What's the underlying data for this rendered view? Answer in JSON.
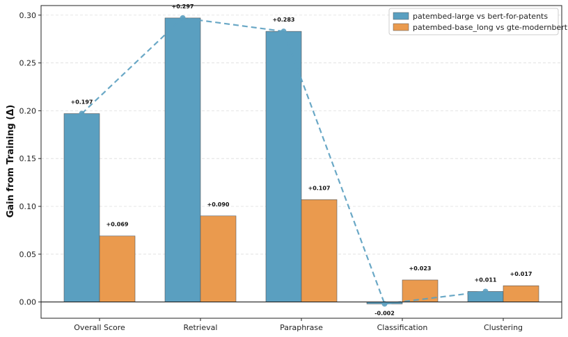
{
  "chart_data": {
    "type": "bar",
    "title": "",
    "xlabel": "",
    "ylabel": "Gain from Training (Δ)",
    "ylim": [
      -0.017,
      0.31
    ],
    "yticks": [
      0.0,
      0.05,
      0.1,
      0.15,
      0.2,
      0.25,
      0.3
    ],
    "ytick_labels": [
      "0.00",
      "0.05",
      "0.10",
      "0.15",
      "0.20",
      "0.25",
      "0.30"
    ],
    "grid": true,
    "legend_position": "top-right",
    "categories": [
      "Overall Score",
      "Retrieval",
      "Paraphrase",
      "Classification",
      "Clustering"
    ],
    "series": [
      {
        "name": "patembed-large vs bert-for-patents",
        "color": "#5a9fc0",
        "values": [
          0.197,
          0.297,
          0.283,
          -0.002,
          0.011
        ],
        "labels": [
          "+0.197",
          "+0.297",
          "+0.283",
          "-0.002",
          "+0.011"
        ],
        "trend_line": true
      },
      {
        "name": "patembed-base_long vs gte-modernbert",
        "color": "#ea9a4e",
        "values": [
          0.069,
          0.09,
          0.107,
          0.023,
          0.017
        ],
        "labels": [
          "+0.069",
          "+0.090",
          "+0.107",
          "+0.023",
          "+0.017"
        ],
        "trend_line": false
      }
    ]
  }
}
